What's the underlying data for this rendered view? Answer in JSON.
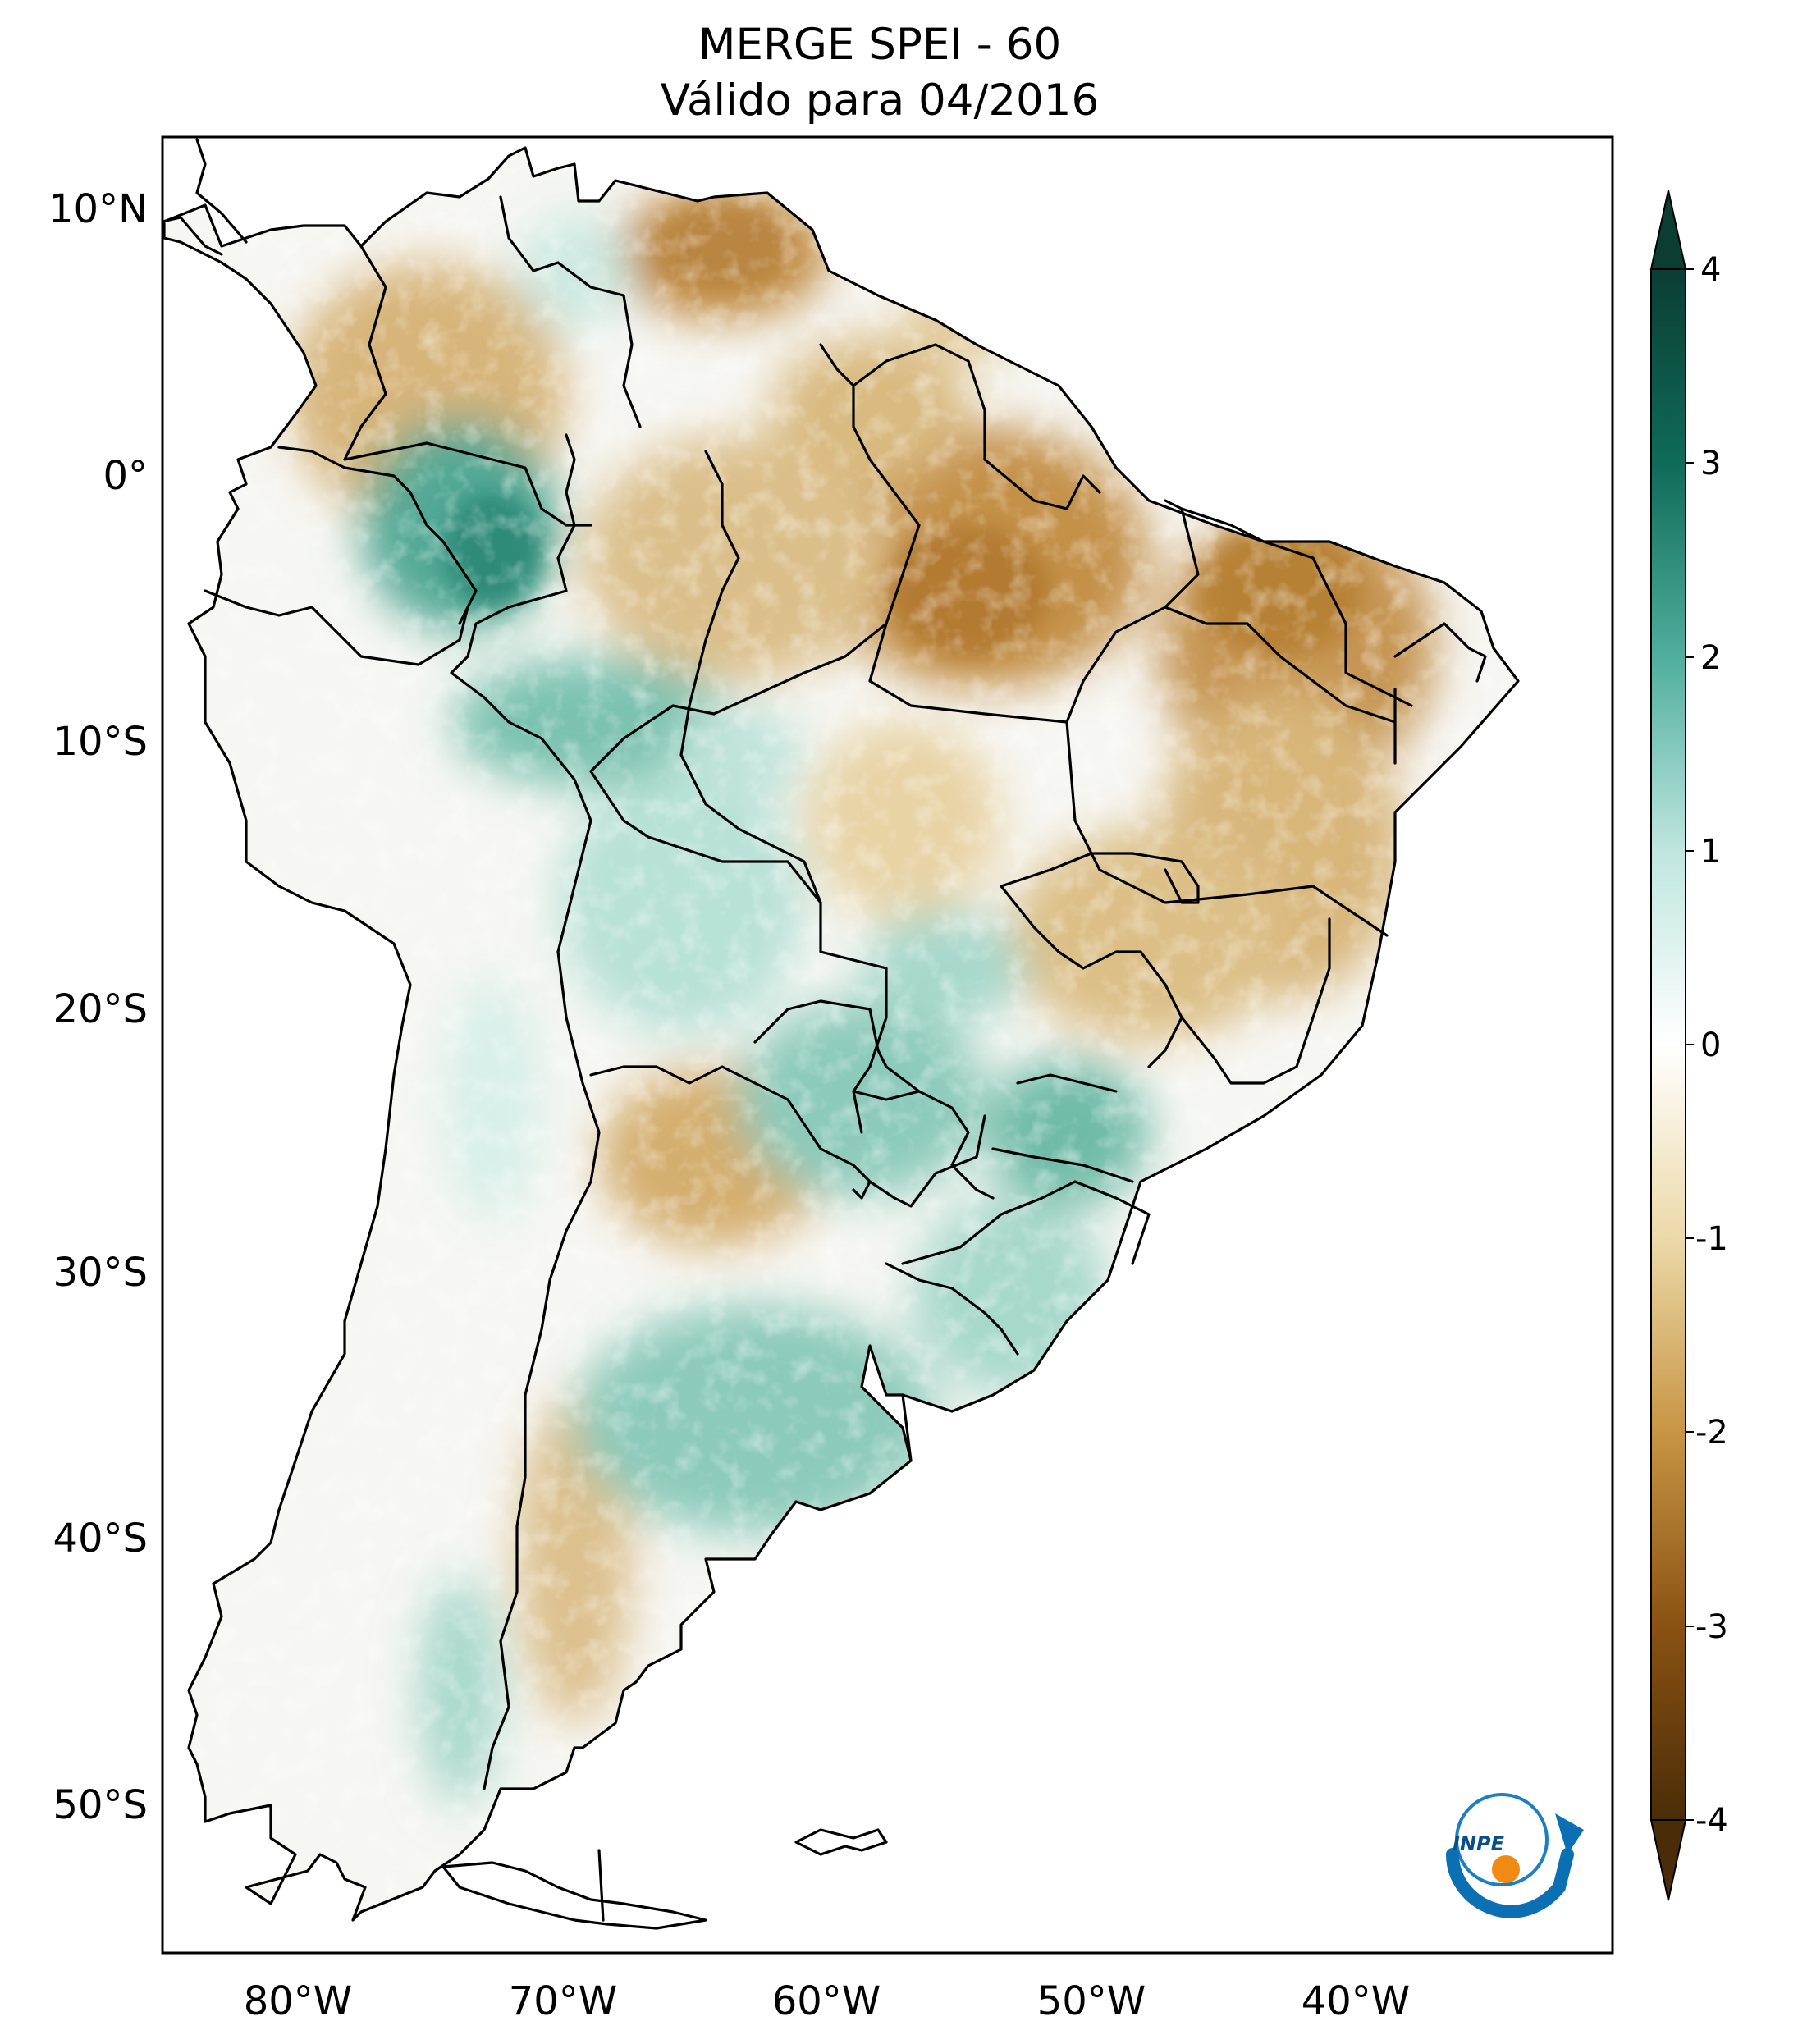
{
  "title": {
    "line1": "MERGE   SPEI - 60",
    "line2": "Válido para 04/2016"
  },
  "map": {
    "lat_labels": [
      "10°N",
      "0°",
      "10°S",
      "20°S",
      "30°S",
      "40°S",
      "50°S"
    ],
    "lon_labels": [
      "80°W",
      "70°W",
      "60°W",
      "50°W",
      "40°W"
    ]
  },
  "colorbar": {
    "ticks": [
      "4",
      "3",
      "2",
      "1",
      "0",
      "-1",
      "-2",
      "-3",
      "-4"
    ],
    "colors": {
      "min": "#4a2d08",
      "dry_strong": "#8a5212",
      "dry": "#c79544",
      "dry_light": "#ecd9a8",
      "neutral": "#ffffff",
      "wet_light": "#bfe6df",
      "wet": "#4fae9d",
      "wet_strong": "#0f6b58",
      "max": "#0b3d33"
    }
  },
  "logo": {
    "text": "INPE"
  }
}
